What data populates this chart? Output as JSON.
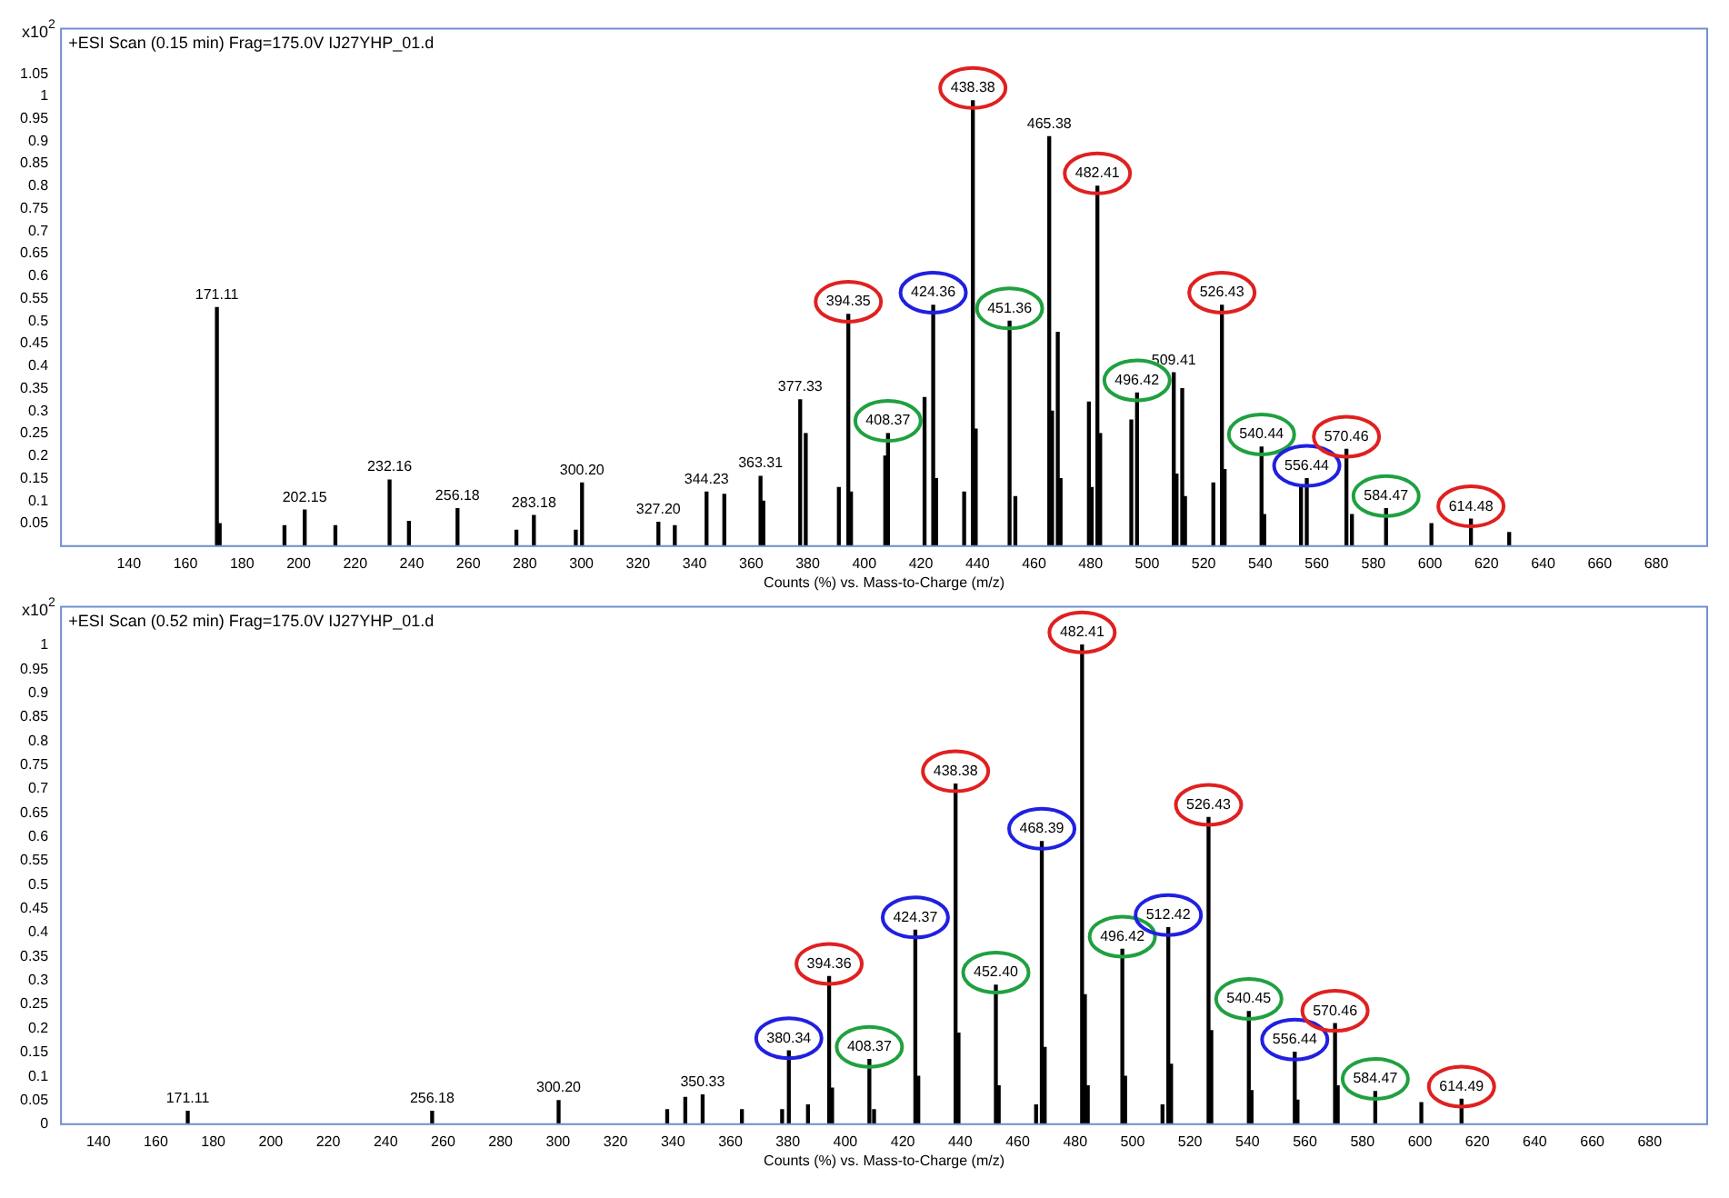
{
  "chart_data": [
    {
      "type": "bar",
      "title": "+ESI Scan (0.15 min) Frag=175.0V IJ27YHP_01.d",
      "ylabel": "x10$^{2}$",
      "xlabel": "Counts (%) vs. Mass-to-Charge (m/z)",
      "color": "#000000",
      "x": [
        171.11,
        172.1,
        195,
        202.15,
        213,
        232.16,
        239,
        256.18,
        277,
        283.18,
        298,
        300.2,
        327.2,
        333,
        344.23,
        350.5,
        363.31,
        364.3,
        377.33,
        379.3,
        391,
        394.35,
        395.3,
        407.4,
        408.37,
        421.3,
        424.36,
        425.4,
        435.3,
        438.38,
        439.4,
        451.36,
        453.4,
        465.38,
        466.4,
        468.4,
        469.4,
        479.4,
        480.4,
        482.41,
        483.4,
        494.4,
        496.42,
        509.41,
        510.4,
        512.4,
        513.4,
        523.4,
        526.43,
        527.4,
        540.44,
        541.4,
        554.4,
        556.44,
        570.46,
        572.4,
        584.47,
        600.5,
        614.48,
        628
      ],
      "values": [
        0.53,
        0.05,
        0.045,
        0.08,
        0.045,
        0.147,
        0.055,
        0.083,
        0.035,
        0.068,
        0.035,
        0.14,
        0.053,
        0.045,
        0.12,
        0.115,
        0.155,
        0.1,
        0.325,
        0.25,
        0.13,
        0.515,
        0.12,
        0.2,
        0.25,
        0.33,
        0.535,
        0.15,
        0.12,
        0.99,
        0.26,
        0.5,
        0.11,
        0.91,
        0.3,
        0.475,
        0.15,
        0.32,
        0.13,
        0.8,
        0.25,
        0.28,
        0.34,
        0.385,
        0.16,
        0.35,
        0.11,
        0.14,
        0.535,
        0.17,
        0.22,
        0.07,
        0.13,
        0.15,
        0.215,
        0.07,
        0.083,
        0.05,
        0.06,
        0.03
      ],
      "annotations": [
        {
          "text": "171.11",
          "x": 171.11,
          "y": 0.53
        },
        {
          "text": "202.15",
          "x": 202.15,
          "y": 0.08
        },
        {
          "text": "232.16",
          "x": 232.16,
          "y": 0.147
        },
        {
          "text": "256.18",
          "x": 256.18,
          "y": 0.083
        },
        {
          "text": "283.18",
          "x": 283.18,
          "y": 0.068
        },
        {
          "text": "300.20",
          "x": 300.2,
          "y": 0.14
        },
        {
          "text": "327.20",
          "x": 327.2,
          "y": 0.053
        },
        {
          "text": "344.23",
          "x": 344.23,
          "y": 0.12
        },
        {
          "text": "363.31",
          "x": 363.31,
          "y": 0.155
        },
        {
          "text": "377.33",
          "x": 377.33,
          "y": 0.325
        },
        {
          "text": "394.35",
          "x": 394.35,
          "y": 0.515
        },
        {
          "text": "408.37",
          "x": 408.37,
          "y": 0.25
        },
        {
          "text": "424.36",
          "x": 424.36,
          "y": 0.535
        },
        {
          "text": "438.38",
          "x": 438.38,
          "y": 0.99
        },
        {
          "text": "451.36",
          "x": 451.36,
          "y": 0.5
        },
        {
          "text": "465.38",
          "x": 465.38,
          "y": 0.91
        },
        {
          "text": "482.41",
          "x": 482.41,
          "y": 0.8
        },
        {
          "text": "496.42",
          "x": 496.42,
          "y": 0.34
        },
        {
          "text": "509.41",
          "x": 509.41,
          "y": 0.385
        },
        {
          "text": "526.43",
          "x": 526.43,
          "y": 0.535
        },
        {
          "text": "540.44",
          "x": 540.44,
          "y": 0.22
        },
        {
          "text": "556.44",
          "x": 556.44,
          "y": 0.15
        },
        {
          "text": "570.46",
          "x": 570.46,
          "y": 0.215
        },
        {
          "text": "584.47",
          "x": 584.47,
          "y": 0.083
        },
        {
          "text": "614.48",
          "x": 614.48,
          "y": 0.06
        }
      ],
      "xlim": [
        116,
        698
      ],
      "xticks": [
        140,
        160,
        180,
        200,
        220,
        240,
        260,
        280,
        300,
        320,
        340,
        360,
        380,
        400,
        420,
        440,
        460,
        480,
        500,
        520,
        540,
        560,
        580,
        600,
        620,
        640,
        660,
        680
      ],
      "ylim": [
        0,
        1.15
      ],
      "yticks": [
        0.05,
        0.1,
        0.15,
        0.2,
        0.25,
        0.3,
        0.35,
        0.4,
        0.45,
        0.5,
        0.55,
        0.6,
        0.65,
        0.7,
        0.75,
        0.8,
        0.85,
        0.9,
        0.95,
        1,
        1.05
      ]
    },
    {
      "type": "bar",
      "title": "+ESI Scan (0.52 min) Frag=175.0V IJ27YHP_01.d",
      "ylabel": "x10$^{2}$",
      "xlabel": "Counts (%) vs. Mass-to-Charge (m/z)",
      "color": "#000000",
      "x": [
        171.11,
        256.18,
        300.2,
        338,
        344.3,
        350.33,
        364,
        378,
        380.34,
        387,
        394.36,
        395.4,
        408.37,
        410,
        424.37,
        425.4,
        438.38,
        439.4,
        452.4,
        453.4,
        466.4,
        468.39,
        469.4,
        482.41,
        483.4,
        484.4,
        496.42,
        497.4,
        510.4,
        512.42,
        513.4,
        526.43,
        527.4,
        540.45,
        541.4,
        556.44,
        557.4,
        570.46,
        571.4,
        584.47,
        600.5,
        614.49
      ],
      "values": [
        0.027,
        0.027,
        0.049,
        0.03,
        0.056,
        0.061,
        0.03,
        0.03,
        0.153,
        0.04,
        0.308,
        0.075,
        0.135,
        0.03,
        0.405,
        0.1,
        0.71,
        0.19,
        0.29,
        0.08,
        0.04,
        0.59,
        0.16,
        1.0,
        0.27,
        0.08,
        0.365,
        0.1,
        0.04,
        0.41,
        0.125,
        0.64,
        0.195,
        0.235,
        0.07,
        0.15,
        0.05,
        0.21,
        0.08,
        0.068,
        0.045,
        0.052
      ],
      "annotations": [
        {
          "text": "171.11",
          "x": 171.11,
          "y": 0.027
        },
        {
          "text": "256.18",
          "x": 256.18,
          "y": 0.027
        },
        {
          "text": "300.20",
          "x": 300.2,
          "y": 0.049
        },
        {
          "text": "350.33",
          "x": 350.33,
          "y": 0.061
        },
        {
          "text": "380.34",
          "x": 380.34,
          "y": 0.153
        },
        {
          "text": "394.36",
          "x": 394.36,
          "y": 0.308
        },
        {
          "text": "408.37",
          "x": 408.37,
          "y": 0.135
        },
        {
          "text": "424.37",
          "x": 424.37,
          "y": 0.405
        },
        {
          "text": "438.38",
          "x": 438.38,
          "y": 0.71
        },
        {
          "text": "452.40",
          "x": 452.4,
          "y": 0.29
        },
        {
          "text": "468.39",
          "x": 468.39,
          "y": 0.59
        },
        {
          "text": "482.41",
          "x": 482.41,
          "y": 1.0
        },
        {
          "text": "496.42",
          "x": 496.42,
          "y": 0.365
        },
        {
          "text": "512.42",
          "x": 512.42,
          "y": 0.41
        },
        {
          "text": "526.43",
          "x": 526.43,
          "y": 0.64
        },
        {
          "text": "540.45",
          "x": 540.45,
          "y": 0.235
        },
        {
          "text": "556.44",
          "x": 556.44,
          "y": 0.15
        },
        {
          "text": "570.46",
          "x": 570.46,
          "y": 0.21
        },
        {
          "text": "584.47",
          "x": 584.47,
          "y": 0.068
        },
        {
          "text": "614.49",
          "x": 614.49,
          "y": 0.052
        }
      ],
      "xlim": [
        127,
        700
      ],
      "xticks": [
        140,
        160,
        180,
        200,
        220,
        240,
        260,
        280,
        300,
        320,
        340,
        360,
        380,
        400,
        420,
        440,
        460,
        480,
        500,
        520,
        540,
        560,
        580,
        600,
        620,
        640,
        660,
        680
      ],
      "ylim": [
        0,
        1.08
      ],
      "yticks": [
        0,
        0.05,
        0.1,
        0.15,
        0.2,
        0.25,
        0.3,
        0.35,
        0.4,
        0.45,
        0.5,
        0.55,
        0.6,
        0.65,
        0.7,
        0.75,
        0.8,
        0.85,
        0.9,
        0.95,
        1
      ]
    }
  ]
}
